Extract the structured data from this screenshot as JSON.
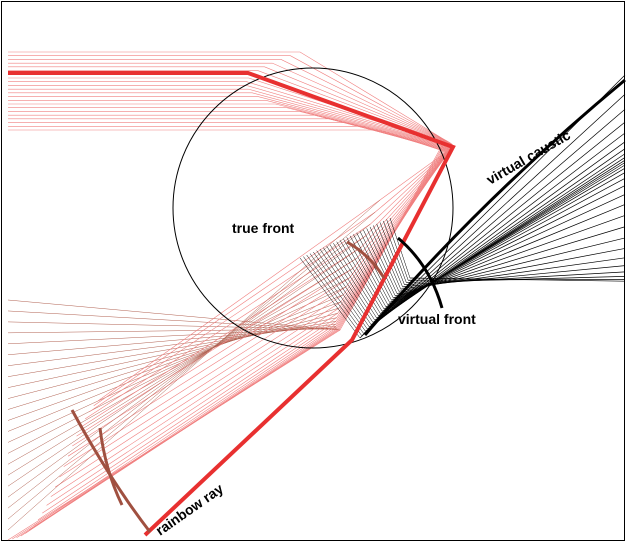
{
  "labels": {
    "true_front": "true front",
    "virtual_caustic": "virtual caustic",
    "virtual_front": "virtual front",
    "rainbow_ray": "rainbow ray"
  }
}
